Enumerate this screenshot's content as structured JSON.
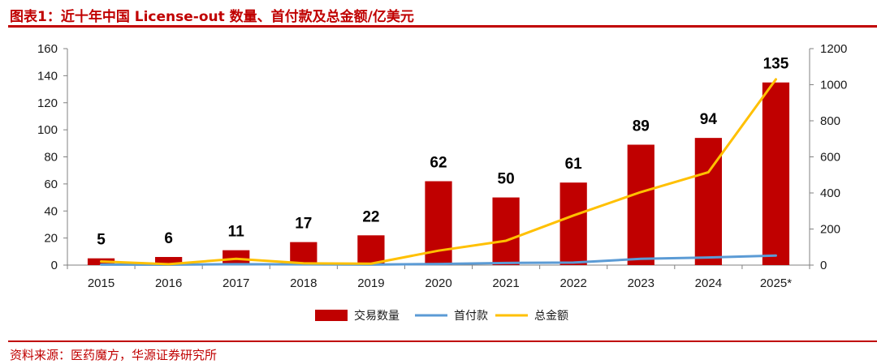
{
  "header": {
    "title": "图表1：近十年中国 License-out 数量、首付款及总金额/亿美元"
  },
  "footer": {
    "source": "资料来源：医药魔方，华源证券研究所"
  },
  "colors": {
    "bars": "#c00000",
    "upfront_line": "#5b9bd5",
    "total_line": "#ffc000",
    "accent": "#c00000"
  },
  "chart_data": {
    "type": "bar",
    "categories": [
      "2015",
      "2016",
      "2017",
      "2018",
      "2019",
      "2020",
      "2021",
      "2022",
      "2023",
      "2024",
      "2025*"
    ],
    "series": [
      {
        "name": "交易数量",
        "type": "bar",
        "axis": "left",
        "values": [
          5,
          6,
          11,
          17,
          22,
          62,
          50,
          61,
          89,
          94,
          135
        ]
      },
      {
        "name": "首付款",
        "type": "line",
        "axis": "right",
        "values": [
          3,
          2,
          5,
          4,
          3,
          6,
          12,
          14,
          35,
          42,
          53
        ]
      },
      {
        "name": "总金额",
        "type": "line",
        "axis": "right",
        "values": [
          20,
          5,
          35,
          10,
          8,
          80,
          135,
          275,
          405,
          515,
          1030
        ]
      }
    ],
    "y_left": {
      "min": 0,
      "max": 160,
      "ticks": [
        0,
        20,
        40,
        60,
        80,
        100,
        120,
        140,
        160
      ]
    },
    "y_right": {
      "min": 0,
      "max": 1200,
      "ticks": [
        0,
        200,
        400,
        600,
        800,
        1000,
        1200
      ]
    },
    "data_labels": [
      "5",
      "6",
      "11",
      "17",
      "22",
      "62",
      "50",
      "61",
      "89",
      "94",
      "135"
    ],
    "legend_position": "bottom",
    "grid": false
  }
}
